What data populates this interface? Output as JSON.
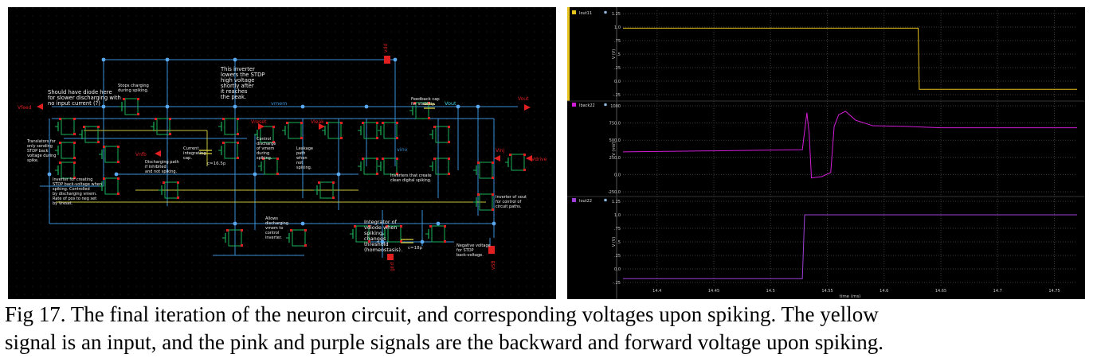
{
  "schematic": {
    "pins": {
      "vfeed": "Vfeed",
      "vout_pin": "Vout",
      "vout_net": "Vout",
      "vmem": "vmem",
      "vinv": "vinv",
      "vnfb": "Vnfb",
      "vreset": "Vreset",
      "vleak": "Vleak",
      "vinj": "Vinj",
      "vdrive": "Vdrive",
      "vdd": "vdd",
      "gnd": "gnd",
      "vsb": "vSB"
    },
    "notes": {
      "diode": [
        "Should have diode here",
        "for slower discharging with",
        "no input current (?)"
      ],
      "stops": [
        "Stops charging",
        "during spiking."
      ],
      "inverter_top": [
        "This inverter",
        "lowers the STDP",
        "high voltage",
        "shortly after",
        "it reaches",
        "the peak."
      ],
      "feedback": [
        "Feedback cap",
        "for stability."
      ],
      "translators": [
        "Translators for",
        "only sending",
        "STDP back",
        "voltage during",
        "spike."
      ],
      "creating": [
        "Inverter for creating",
        "STDP back-voltage when",
        "spiking. Controlled",
        "by discharging vmem.",
        "Rate of pos to neg set",
        "by Vreset."
      ],
      "current": [
        "Current",
        "integrating",
        "cap."
      ],
      "discharging": [
        "Discharging path",
        "if inhibited",
        "and not spiking."
      ],
      "control": [
        "Control",
        "discharge",
        "of vmem",
        "during",
        "spiking."
      ],
      "leakage": [
        "Leakage",
        "path",
        "when",
        "not",
        "spiking."
      ],
      "inverters_clean": [
        "Inverters that create",
        "clean digital spiking."
      ],
      "inverter_vout": [
        "Inverter of vout",
        "for control of",
        "circuit paths."
      ],
      "allows": [
        "Allows",
        "discharging",
        "vmem to",
        "control",
        "inverter."
      ],
      "integrator": [
        "Integrator of",
        "vdiode when",
        "spiking,",
        "changes",
        "threshold",
        "(homeostasis)."
      ],
      "negative": [
        "Negative voltage",
        "for STDP",
        "back-voltage."
      ]
    },
    "cap_labels": {
      "c_vmem": "c=16.5p",
      "c_int": "c=18p"
    }
  },
  "waveforms": {
    "time_axis_label": "time (ms)",
    "time_ticks": [
      "14.4",
      "14.45",
      "14.5",
      "14.55",
      "14.6",
      "14.65",
      "14.7",
      "14.75"
    ],
    "x_range": [
      14.37,
      14.77
    ],
    "panels": [
      {
        "legend": "Iout11",
        "color": "#e8c21c",
        "ylabel": "V (V)",
        "yticks": [
          "1.25",
          "1.0",
          ".75",
          ".5",
          ".25",
          "0.0",
          "-.25"
        ],
        "ylim": [
          -0.25,
          1.25
        ],
        "points": [
          [
            14.37,
            0.98
          ],
          [
            14.63,
            0.98
          ],
          [
            14.631,
            -0.15
          ],
          [
            14.77,
            -0.15
          ]
        ]
      },
      {
        "legend": "Iback22",
        "color": "#d21dd6",
        "ylabel": "V (mV)",
        "yticks": [
          "1000",
          "750.0",
          "500.0",
          "250.0",
          "0.0",
          "-250.0"
        ],
        "ylim": [
          -250,
          1000
        ],
        "points": [
          [
            14.37,
            330
          ],
          [
            14.45,
            345
          ],
          [
            14.528,
            362
          ],
          [
            14.532,
            900
          ],
          [
            14.534,
            600
          ],
          [
            14.536,
            -50
          ],
          [
            14.545,
            -30
          ],
          [
            14.553,
            30
          ],
          [
            14.556,
            700
          ],
          [
            14.56,
            870
          ],
          [
            14.566,
            920
          ],
          [
            14.575,
            790
          ],
          [
            14.59,
            710
          ],
          [
            14.62,
            700
          ],
          [
            14.65,
            680
          ],
          [
            14.77,
            680
          ]
        ]
      },
      {
        "legend": "Iout22",
        "color": "#9f3fd6",
        "ylabel": "V (V)",
        "yticks": [
          "1.25",
          "1.0",
          ".75",
          ".5",
          ".25",
          "0.0",
          "-.25"
        ],
        "ylim": [
          -0.25,
          1.25
        ],
        "points": [
          [
            14.37,
            -0.18
          ],
          [
            14.528,
            -0.18
          ],
          [
            14.53,
            1.0
          ],
          [
            14.77,
            1.0
          ]
        ]
      }
    ]
  },
  "caption": {
    "line1": "Fig 17. The final iteration of the neuron circuit, and corresponding voltages upon spiking. The yellow",
    "line2": "signal is an input, and the pink and purple signals are the backward and forward voltage upon spiking."
  }
}
